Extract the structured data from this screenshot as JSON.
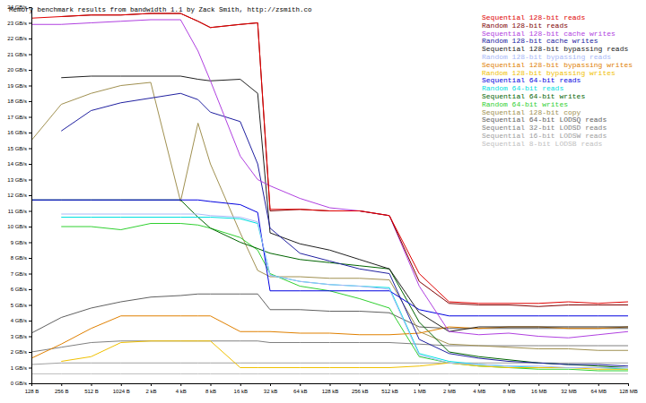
{
  "chart_data": {
    "type": "line",
    "title": "Memory benchmark results from bandwidth 1.1 by Zack Smith, http://zsmith.co",
    "log": "x",
    "grid": false,
    "legend": "top-right",
    "xlim": [
      128,
      134217728
    ],
    "ylim": [
      0,
      24
    ],
    "xticks": [
      {
        "value": 128,
        "label": "128 B"
      },
      {
        "value": 256,
        "label": "256 B"
      },
      {
        "value": 512,
        "label": "512 B"
      },
      {
        "value": 1024,
        "label": "1024 B"
      },
      {
        "value": 2048,
        "label": "2 kB"
      },
      {
        "value": 4096,
        "label": "4 kB"
      },
      {
        "value": 8192,
        "label": "8 kB"
      },
      {
        "value": 16384,
        "label": "16 kB"
      },
      {
        "value": 32768,
        "label": "32 kB"
      },
      {
        "value": 65536,
        "label": "64 kB"
      },
      {
        "value": 131072,
        "label": "128 kB"
      },
      {
        "value": 262144,
        "label": "256 kB"
      },
      {
        "value": 524288,
        "label": "512 kB"
      },
      {
        "value": 1048576,
        "label": "1 MB"
      },
      {
        "value": 2097152,
        "label": "2 MB"
      },
      {
        "value": 4194304,
        "label": "4 MB"
      },
      {
        "value": 8388608,
        "label": "8 MB"
      },
      {
        "value": 16777216,
        "label": "16 MB"
      },
      {
        "value": 33554432,
        "label": "32 MB"
      },
      {
        "value": 67108864,
        "label": "64 MB"
      },
      {
        "value": 134217728,
        "label": "128 MB"
      }
    ],
    "yticks": [
      {
        "value": 0,
        "label": "0 GB/s"
      },
      {
        "value": 1,
        "label": "1 GB/s"
      },
      {
        "value": 2,
        "label": "2 GB/s"
      },
      {
        "value": 3,
        "label": "3 GB/s"
      },
      {
        "value": 4,
        "label": "4 GB/s"
      },
      {
        "value": 5,
        "label": "5 GB/s"
      },
      {
        "value": 6,
        "label": "6 GB/s"
      },
      {
        "value": 7,
        "label": "7 GB/s"
      },
      {
        "value": 8,
        "label": "8 GB/s"
      },
      {
        "value": 9,
        "label": "9 GB/s"
      },
      {
        "value": 10,
        "label": "10 GB/s"
      },
      {
        "value": 11,
        "label": "11 GB/s"
      },
      {
        "value": 12,
        "label": "12 GB/s"
      },
      {
        "value": 13,
        "label": "13 GB/s"
      },
      {
        "value": 14,
        "label": "14 GB/s"
      },
      {
        "value": 15,
        "label": "15 GB/s"
      },
      {
        "value": 16,
        "label": "16 GB/s"
      },
      {
        "value": 17,
        "label": "17 GB/s"
      },
      {
        "value": 18,
        "label": "18 GB/s"
      },
      {
        "value": 19,
        "label": "19 GB/s"
      },
      {
        "value": 20,
        "label": "20 GB/s"
      },
      {
        "value": 21,
        "label": "21 GB/s"
      },
      {
        "value": 22,
        "label": "22 GB/s"
      },
      {
        "value": 23,
        "label": "23 GB/s"
      },
      {
        "value": 24,
        "label": "24 GB/s"
      }
    ],
    "x": [
      128,
      256,
      512,
      1024,
      2048,
      4096,
      6144,
      8192,
      16384,
      24576,
      32768,
      65536,
      131072,
      262144,
      524288,
      1048576,
      2097152,
      4194304,
      8388608,
      16777216,
      33554432,
      67108864,
      134217728
    ],
    "series": [
      {
        "name": "Sequential 128-bit reads",
        "color": "#e00000",
        "values": [
          23.3,
          23.4,
          23.5,
          23.5,
          23.6,
          23.6,
          23.1,
          22.7,
          22.9,
          23.0,
          11.1,
          11.1,
          11.0,
          11.0,
          10.7,
          7.0,
          5.2,
          5.1,
          5.1,
          5.1,
          5.2,
          5.1,
          5.2
        ]
      },
      {
        "name": "Random 128-bit reads",
        "color": "#800000",
        "values": [
          null,
          23.4,
          23.5,
          23.5,
          23.6,
          23.6,
          23.1,
          22.7,
          22.9,
          23.0,
          11.0,
          11.1,
          11.0,
          11.0,
          10.7,
          6.5,
          5.1,
          5.0,
          5.0,
          4.9,
          5.0,
          5.0,
          5.0
        ]
      },
      {
        "name": "Sequential 128-bit cache writes",
        "color": "#b040e0",
        "values": [
          22.9,
          22.9,
          23.0,
          23.1,
          23.2,
          23.2,
          21.2,
          19.3,
          14.5,
          13.0,
          12.6,
          11.8,
          11.2,
          11.0,
          10.7,
          6.2,
          3.3,
          3.1,
          3.2,
          3.0,
          2.9,
          3.1,
          3.3
        ]
      },
      {
        "name": "Random 128-bit cache writes",
        "color": "#2020a0",
        "values": [
          null,
          16.1,
          17.4,
          17.9,
          18.2,
          18.5,
          18.1,
          17.3,
          16.7,
          14.0,
          9.9,
          8.3,
          7.8,
          7.3,
          7.0,
          2.8,
          1.9,
          1.6,
          1.4,
          1.3,
          1.2,
          1.2,
          1.1
        ]
      },
      {
        "name": "Sequential 128-bit bypassing reads",
        "color": "#202020",
        "values": [
          null,
          19.5,
          19.6,
          19.6,
          19.6,
          19.6,
          19.4,
          19.3,
          19.4,
          18.5,
          9.6,
          8.9,
          8.5,
          7.9,
          7.3,
          4.5,
          3.3,
          3.6,
          3.6,
          3.6,
          3.6,
          3.6,
          3.6
        ]
      },
      {
        "name": "Random 128-bit bypassing reads",
        "color": "#a8b8f8",
        "values": [
          null,
          10.8,
          10.8,
          10.8,
          10.8,
          10.8,
          10.8,
          10.7,
          10.6,
          10.3,
          6.9,
          6.5,
          6.3,
          6.2,
          6.0,
          1.8,
          1.3,
          1.2,
          1.1,
          1.1,
          1.0,
          1.0,
          1.0
        ]
      },
      {
        "name": "Sequential 128-bit bypassing writes",
        "color": "#e08000",
        "values": [
          1.6,
          2.5,
          3.5,
          4.3,
          4.3,
          4.3,
          4.3,
          4.3,
          3.3,
          3.3,
          3.3,
          3.2,
          3.2,
          3.1,
          3.1,
          3.2,
          3.6,
          3.5,
          3.6,
          3.6,
          3.5,
          3.5,
          3.6
        ]
      },
      {
        "name": "Random 128-bit bypassing writes",
        "color": "#f0c000",
        "values": [
          null,
          1.4,
          1.7,
          2.6,
          2.7,
          2.7,
          2.7,
          2.7,
          1.0,
          1.0,
          1.0,
          1.0,
          1.0,
          1.0,
          1.0,
          1.1,
          1.3,
          1.1,
          1.0,
          1.0,
          1.0,
          0.9,
          0.9
        ]
      },
      {
        "name": "Sequential 64-bit reads",
        "color": "#0000e0",
        "values": [
          11.7,
          11.7,
          11.7,
          11.7,
          11.7,
          11.7,
          11.7,
          11.6,
          11.4,
          10.9,
          5.9,
          5.9,
          5.9,
          5.9,
          5.9,
          4.7,
          4.3,
          4.3,
          4.3,
          4.3,
          4.3,
          4.3,
          4.3
        ]
      },
      {
        "name": "Random 64-bit reads",
        "color": "#00e0e0",
        "values": [
          null,
          10.6,
          10.6,
          10.6,
          10.6,
          10.6,
          10.6,
          10.6,
          10.5,
          10.2,
          6.9,
          6.5,
          6.3,
          6.2,
          6.1,
          1.9,
          1.4,
          1.2,
          1.1,
          1.0,
          1.0,
          1.0,
          0.9
        ]
      },
      {
        "name": "Sequential 64-bit writes",
        "color": "#006400",
        "values": [
          11.7,
          11.7,
          11.7,
          11.7,
          11.7,
          11.7,
          10.6,
          9.9,
          9.0,
          8.6,
          8.3,
          7.9,
          7.7,
          7.5,
          7.3,
          3.9,
          2.0,
          1.7,
          1.5,
          1.3,
          1.2,
          1.1,
          1.0
        ]
      },
      {
        "name": "Random 64-bit writes",
        "color": "#30d030",
        "values": [
          null,
          10.0,
          10.0,
          9.8,
          10.2,
          10.2,
          10.1,
          9.9,
          9.3,
          8.5,
          7.0,
          6.2,
          5.9,
          5.4,
          4.8,
          1.7,
          1.3,
          1.1,
          1.0,
          0.9,
          0.9,
          0.8,
          0.8
        ]
      },
      {
        "name": "Sequential 128-bit copy",
        "color": "#a09050",
        "values": [
          15.5,
          17.8,
          18.5,
          19.0,
          19.2,
          11.6,
          16.6,
          14.0,
          9.6,
          7.2,
          6.8,
          6.8,
          6.7,
          6.7,
          6.6,
          3.3,
          2.5,
          2.4,
          2.3,
          2.2,
          2.2,
          2.1,
          2.1
        ]
      },
      {
        "name": "Sequential 64-bit LODSQ reads",
        "color": "#606060",
        "values": [
          3.2,
          4.2,
          4.8,
          5.2,
          5.5,
          5.6,
          5.7,
          5.7,
          5.7,
          5.7,
          4.7,
          4.7,
          4.6,
          4.6,
          4.5,
          3.6,
          3.5,
          3.5,
          3.5,
          3.5,
          3.5,
          3.5,
          3.5
        ]
      },
      {
        "name": "Sequential 32-bit LODSD reads",
        "color": "#808080",
        "values": [
          2.0,
          2.3,
          2.6,
          2.7,
          2.7,
          2.7,
          2.7,
          2.7,
          2.7,
          2.7,
          2.6,
          2.6,
          2.6,
          2.6,
          2.6,
          2.5,
          2.4,
          2.4,
          2.4,
          2.4,
          2.4,
          2.4,
          2.4
        ]
      },
      {
        "name": "Sequential 16-bit LODSW reads",
        "color": "#a0a0a0",
        "values": [
          1.2,
          1.3,
          1.3,
          1.3,
          1.3,
          1.3,
          1.3,
          1.3,
          1.3,
          1.3,
          1.3,
          1.3,
          1.3,
          1.3,
          1.3,
          1.3,
          1.3,
          1.3,
          1.3,
          1.3,
          1.3,
          1.3,
          1.3
        ]
      },
      {
        "name": "Sequential 8-bit LODSB reads",
        "color": "#c0c0c0",
        "values": [
          0.6,
          0.6,
          0.6,
          0.6,
          0.6,
          0.6,
          0.6,
          0.6,
          0.6,
          0.6,
          0.6,
          0.6,
          0.6,
          0.6,
          0.6,
          0.6,
          0.6,
          0.6,
          0.6,
          0.6,
          0.6,
          0.6,
          0.6
        ]
      }
    ]
  }
}
